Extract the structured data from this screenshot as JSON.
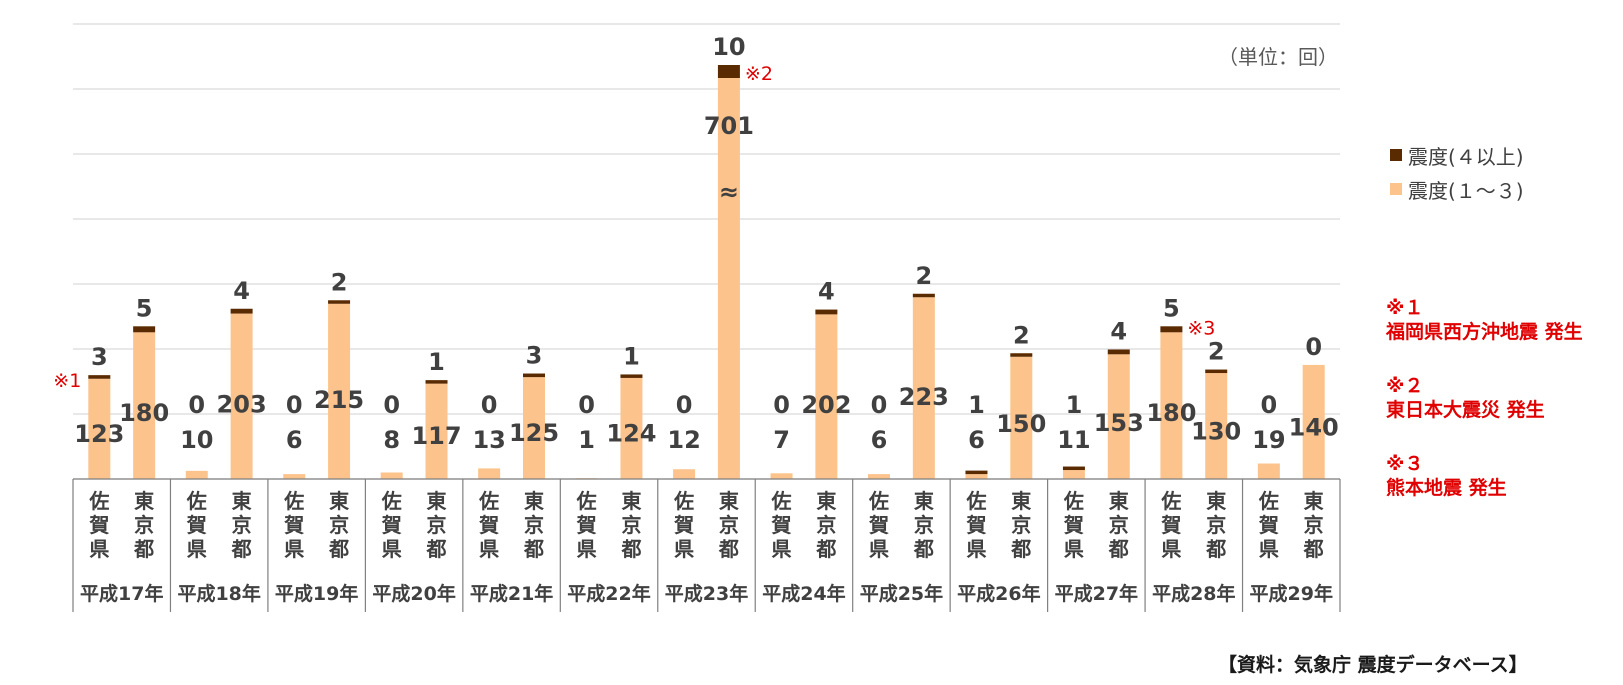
{
  "unit_label": "（単位：回）",
  "legend": [
    {
      "label": "震度(４以上)",
      "color": "#5a2a00"
    },
    {
      "label": "震度(１～３)",
      "color": "#fcc48c"
    }
  ],
  "notes": [
    {
      "mark": "※１",
      "text": "福岡県西方沖地震 発生"
    },
    {
      "mark": "※２",
      "text": "東日本大震災 発生"
    },
    {
      "mark": "※３",
      "text": "熊本地震 発生"
    }
  ],
  "source": "【資料：気象庁 震度データベース】",
  "chart_data": {
    "type": "bar",
    "stacked": true,
    "axis_break": {
      "category": "平成23年 東京都",
      "symbol": "≈"
    },
    "categories_sub": [
      "佐賀県",
      "東京都"
    ],
    "years": [
      "平成17年",
      "平成18年",
      "平成19年",
      "平成20年",
      "平成21年",
      "平成22年",
      "平成23年",
      "平成24年",
      "平成25年",
      "平成26年",
      "平成27年",
      "平成28年",
      "平成29年"
    ],
    "series": [
      {
        "name": "震度(１～３)",
        "color": "#fcc48c",
        "saga": [
          123,
          10,
          6,
          8,
          13,
          1,
          12,
          7,
          6,
          6,
          11,
          180,
          19
        ],
        "tokyo": [
          180,
          203,
          215,
          117,
          125,
          124,
          701,
          202,
          223,
          150,
          153,
          130,
          140
        ]
      },
      {
        "name": "震度(４以上)",
        "color": "#5a2a00",
        "saga": [
          3,
          0,
          0,
          0,
          0,
          0,
          0,
          0,
          0,
          1,
          1,
          5,
          0
        ],
        "tokyo": [
          5,
          4,
          2,
          1,
          3,
          1,
          10,
          4,
          2,
          2,
          4,
          2,
          0
        ]
      }
    ],
    "annotations": [
      {
        "mark": "※1",
        "year": "平成17年",
        "region": "佐賀県"
      },
      {
        "mark": "※2",
        "year": "平成23年",
        "region": "東京都"
      },
      {
        "mark": "※3",
        "year": "平成28年",
        "region": "佐賀県"
      }
    ]
  }
}
